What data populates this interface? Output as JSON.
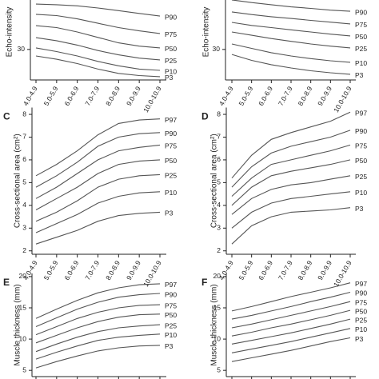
{
  "chart_data": [
    {
      "type": "line",
      "ylabel": "Echo-intensity",
      "categories": [
        "4.0-4.9",
        "5.0-5.9",
        "6.0-6.9",
        "7.0-7.9",
        "8.0-8.9",
        "9.0-9.9",
        "10.0-10.9"
      ],
      "ylim": [
        16,
        60
      ],
      "yticks": [
        30
      ],
      "series": [
        {
          "name": "P90",
          "color": "#555555",
          "values": [
            50.8,
            50.5,
            50,
            49,
            47.8,
            46.5,
            45.3
          ]
        },
        {
          "name": "P75",
          "color": "#555555",
          "values": [
            46.1,
            45.5,
            44,
            42,
            40,
            38.5,
            37.3
          ]
        },
        {
          "name": "P50",
          "color": "#555555",
          "values": [
            40.9,
            40,
            38,
            35.5,
            33,
            31.5,
            30.7
          ]
        },
        {
          "name": "P25",
          "color": "#555555",
          "values": [
            35.4,
            34,
            32,
            29.5,
            27.5,
            26,
            25.2
          ]
        },
        {
          "name": "P10",
          "color": "#555555",
          "values": [
            30.7,
            29,
            27,
            24.5,
            22.5,
            21,
            20.4
          ]
        },
        {
          "name": "P3",
          "color": "#555555",
          "values": [
            27,
            25.5,
            23.5,
            21,
            19,
            18,
            17.5
          ]
        }
      ]
    },
    {
      "type": "line",
      "ylabel": "Echo-intensity",
      "categories": [
        "4.0-4.9",
        "5.0-5.9",
        "6.0-6.9",
        "7.0-7.9",
        "8.0-8.9",
        "9.0-9.9",
        "10.0-10.9"
      ],
      "ylim": [
        16,
        60
      ],
      "yticks": [
        30
      ],
      "series": [
        {
          "name": "P90",
          "color": "#555555",
          "values": [
            52.7,
            51.5,
            50.5,
            49.5,
            48.8,
            48,
            47.5
          ]
        },
        {
          "name": "P75",
          "color": "#555555",
          "values": [
            47.2,
            46,
            45,
            44.2,
            43.3,
            42.5,
            41.7
          ]
        },
        {
          "name": "P50",
          "color": "#555555",
          "values": [
            42.4,
            41,
            40,
            39,
            38,
            37,
            36.2
          ]
        },
        {
          "name": "P25",
          "color": "#555555",
          "values": [
            38,
            36.5,
            35,
            33.7,
            32.5,
            31.5,
            30.7
          ]
        },
        {
          "name": "P10",
          "color": "#555555",
          "values": [
            32.5,
            30.5,
            28.5,
            27,
            25.8,
            24.8,
            24.1
          ]
        },
        {
          "name": "P3",
          "color": "#555555",
          "values": [
            27.7,
            25,
            23,
            21.5,
            20.2,
            19.3,
            18.6
          ]
        }
      ]
    },
    {
      "type": "line",
      "panel": "C",
      "ylabel": "Cross-sectional area (cm²)",
      "categories": [
        "4.0-4.9",
        "5.0-5.9",
        "6.0-6.9",
        "7.0-7.9",
        "8.0-8.9",
        "9.0-9.9",
        "10.0-10.9"
      ],
      "ylim": [
        1.85,
        8.3
      ],
      "yticks": [
        2,
        3,
        4,
        5,
        6,
        7,
        8
      ],
      "series": [
        {
          "name": "P97",
          "color": "#555555",
          "values": [
            5.3,
            5.8,
            6.4,
            7.1,
            7.6,
            7.75,
            7.8
          ]
        },
        {
          "name": "P90",
          "color": "#555555",
          "values": [
            4.8,
            5.3,
            5.9,
            6.6,
            7.0,
            7.15,
            7.2
          ]
        },
        {
          "name": "P75",
          "color": "#555555",
          "values": [
            4.3,
            4.8,
            5.4,
            6.0,
            6.4,
            6.55,
            6.65
          ]
        },
        {
          "name": "P50",
          "color": "#555555",
          "values": [
            3.8,
            4.3,
            4.8,
            5.4,
            5.8,
            5.95,
            6.0
          ]
        },
        {
          "name": "P25",
          "color": "#555555",
          "values": [
            3.3,
            3.7,
            4.2,
            4.8,
            5.15,
            5.3,
            5.35
          ]
        },
        {
          "name": "P10",
          "color": "#555555",
          "values": [
            2.8,
            3.2,
            3.6,
            4.1,
            4.4,
            4.55,
            4.6
          ]
        },
        {
          "name": "P3",
          "color": "#555555",
          "values": [
            2.3,
            2.6,
            2.9,
            3.3,
            3.55,
            3.65,
            3.7
          ]
        }
      ]
    },
    {
      "type": "line",
      "panel": "D",
      "ylabel": "Cross-sectional area (cm²)",
      "categories": [
        "4.0-4.9",
        "5.0-5.9",
        "6.0-6.9",
        "7.0-7.9",
        "8.0-8.9",
        "9.0-9.9",
        "10.0-10.9"
      ],
      "ylim": [
        1.85,
        8.3
      ],
      "yticks": [
        2,
        3,
        4,
        5,
        6,
        7,
        8
      ],
      "series": [
        {
          "name": "P97",
          "color": "#555555",
          "values": [
            5.2,
            6.2,
            6.9,
            7.2,
            7.45,
            7.7,
            8.1
          ]
        },
        {
          "name": "P90",
          "color": "#555555",
          "values": [
            4.8,
            5.7,
            6.3,
            6.6,
            6.8,
            7.0,
            7.3
          ]
        },
        {
          "name": "P75",
          "color": "#555555",
          "values": [
            4.4,
            5.2,
            5.8,
            6.0,
            6.2,
            6.4,
            6.65
          ]
        },
        {
          "name": "P50",
          "color": "#555555",
          "values": [
            4.0,
            4.8,
            5.3,
            5.5,
            5.65,
            5.8,
            6.0
          ]
        },
        {
          "name": "P25",
          "color": "#555555",
          "values": [
            3.6,
            4.3,
            4.7,
            4.9,
            5.0,
            5.15,
            5.3
          ]
        },
        {
          "name": "P10",
          "color": "#555555",
          "values": [
            3.0,
            3.7,
            4.1,
            4.3,
            4.4,
            4.5,
            4.6
          ]
        },
        {
          "name": "P3",
          "color": "#555555",
          "values": [
            2.3,
            3.1,
            3.5,
            3.7,
            3.75,
            3.8,
            3.9
          ]
        }
      ]
    },
    {
      "type": "line",
      "panel": "E",
      "ylabel": "Muscle thickness (mm)",
      "categories": [
        null,
        null,
        null,
        null,
        null,
        null,
        null
      ],
      "ylim": [
        4,
        20.5
      ],
      "yticks": [
        5,
        10,
        15,
        20
      ],
      "series": [
        {
          "name": "P97",
          "color": "#555555",
          "values": [
            13.3,
            14.8,
            16.2,
            17.4,
            18.2,
            18.7,
            18.85
          ]
        },
        {
          "name": "P90",
          "color": "#555555",
          "values": [
            12.0,
            13.4,
            14.8,
            15.9,
            16.7,
            17.1,
            17.3
          ]
        },
        {
          "name": "P75",
          "color": "#555555",
          "values": [
            10.7,
            12.0,
            13.3,
            14.3,
            15.0,
            15.4,
            15.5
          ]
        },
        {
          "name": "P50",
          "color": "#555555",
          "values": [
            9.4,
            10.6,
            11.8,
            12.8,
            13.5,
            13.9,
            14.0
          ]
        },
        {
          "name": "P25",
          "color": "#555555",
          "values": [
            8.0,
            9.2,
            10.3,
            11.2,
            11.8,
            12.1,
            12.3
          ]
        },
        {
          "name": "P10",
          "color": "#555555",
          "values": [
            6.8,
            7.9,
            8.9,
            9.8,
            10.3,
            10.6,
            10.8
          ]
        },
        {
          "name": "P3",
          "color": "#555555",
          "values": [
            5.4,
            6.4,
            7.3,
            8.1,
            8.6,
            8.9,
            9.0
          ]
        }
      ]
    },
    {
      "type": "line",
      "panel": "F",
      "ylabel": "Muscle thickness (mm)",
      "categories": [
        null,
        null,
        null,
        null,
        null,
        null,
        null
      ],
      "ylim": [
        4,
        20.5
      ],
      "yticks": [
        5,
        10,
        15,
        20
      ],
      "series": [
        {
          "name": "P97",
          "color": "#555555",
          "values": [
            14.5,
            15.2,
            16,
            16.8,
            17.5,
            18.2,
            19
          ]
        },
        {
          "name": "P90",
          "color": "#555555",
          "values": [
            13.2,
            13.8,
            14.5,
            15.2,
            16,
            16.7,
            17.5
          ]
        },
        {
          "name": "P75",
          "color": "#555555",
          "values": [
            11.8,
            12.4,
            13.1,
            13.8,
            14.5,
            15.2,
            16
          ]
        },
        {
          "name": "P50",
          "color": "#555555",
          "values": [
            10.5,
            11.1,
            11.8,
            12.4,
            13.1,
            13.8,
            14.6
          ]
        },
        {
          "name": "P25",
          "color": "#555555",
          "values": [
            9.2,
            9.8,
            10.4,
            11.0,
            11.7,
            12.4,
            13.2
          ]
        },
        {
          "name": "P10",
          "color": "#555555",
          "values": [
            7.8,
            8.4,
            9.0,
            9.6,
            10.3,
            11.0,
            11.7
          ]
        },
        {
          "name": "P3",
          "color": "#555555",
          "values": [
            6.4,
            7.0,
            7.6,
            8.2,
            8.9,
            9.6,
            10.2
          ]
        }
      ]
    }
  ]
}
